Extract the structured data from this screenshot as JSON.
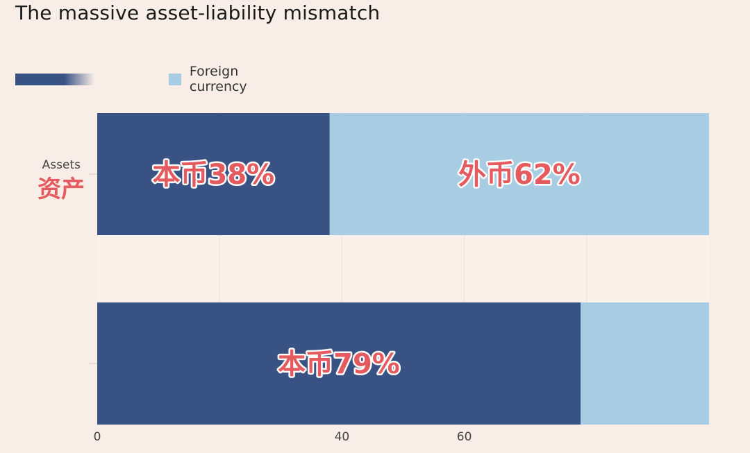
{
  "title": "The massive asset-liability mismatch",
  "legend": [
    {
      "label": "",
      "color": "#395284"
    },
    {
      "label": "Foreign currency",
      "color": "#a8cde2"
    }
  ],
  "chart_data": {
    "type": "bar",
    "orientation": "horizontal",
    "stacked": true,
    "title": "The massive asset-liability mismatch",
    "categories": [
      "Assets",
      ""
    ],
    "category_annotations": [
      "资产",
      ""
    ],
    "series": [
      {
        "values": [
          38,
          79
        ],
        "color": "#395284"
      },
      {
        "name": "Foreign currency",
        "values": [
          62,
          21
        ],
        "color": "#a8cde2"
      }
    ],
    "xlim": [
      0,
      100
    ],
    "x_ticks": [
      0,
      40,
      60
    ],
    "vertical_grid": true,
    "annotations": [
      {
        "text": "本币38%",
        "category": 0,
        "series": 0
      },
      {
        "text": "外币62%",
        "category": 0,
        "series": 1
      },
      {
        "text": "本币79%",
        "category": 1,
        "series": 0
      }
    ],
    "annotation_color": "#e45a5e"
  }
}
